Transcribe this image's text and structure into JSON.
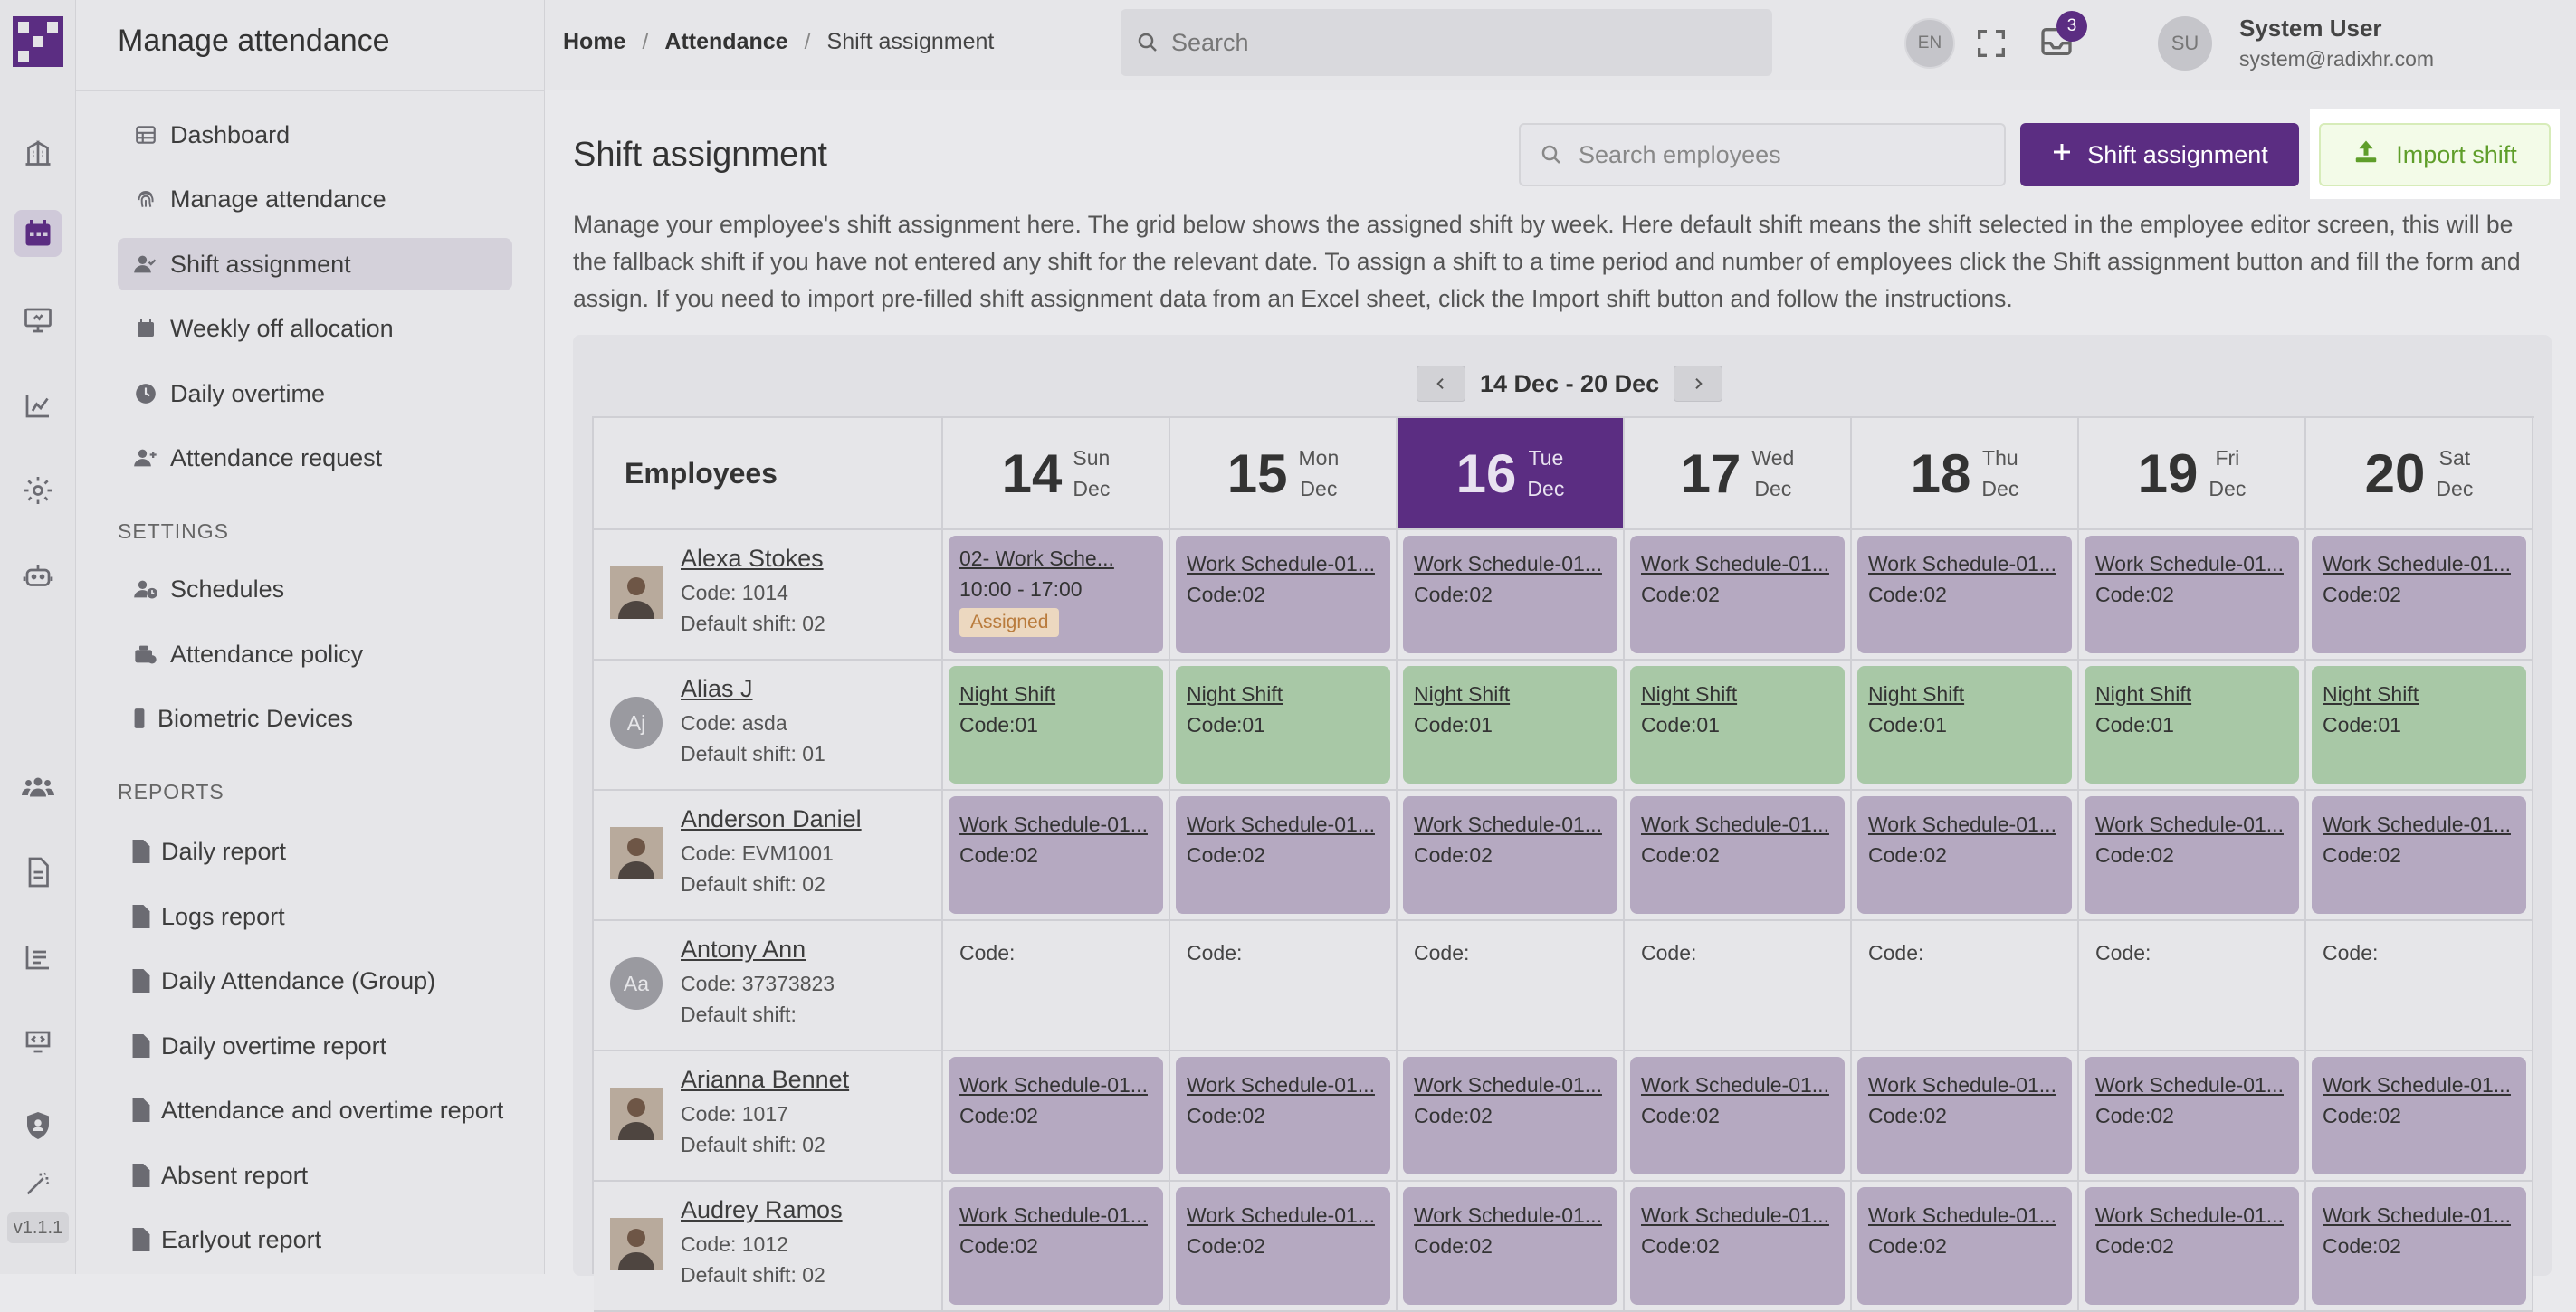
{
  "app": {
    "title": "Manage attendance",
    "version": "v1.1.1"
  },
  "rail_icons": [
    "building-icon",
    "calendar-icon",
    "monitor-icon",
    "chart-icon",
    "gear-icon",
    "robot-icon",
    "users-icon",
    "document-icon",
    "report-icon",
    "screen-icon",
    "shield-icon",
    "wand-icon"
  ],
  "sidebar": {
    "items": [
      {
        "label": "Dashboard",
        "icon": "table-icon"
      },
      {
        "label": "Manage attendance",
        "icon": "fingerprint-icon"
      },
      {
        "label": "Shift assignment",
        "icon": "user-check-icon"
      },
      {
        "label": "Weekly off allocation",
        "icon": "calendar-icon"
      },
      {
        "label": "Daily overtime",
        "icon": "clock-icon"
      },
      {
        "label": "Attendance request",
        "icon": "user-plus-icon"
      }
    ],
    "settings_label": "SETTINGS",
    "settings": [
      {
        "label": "Schedules",
        "icon": "user-clock-icon"
      },
      {
        "label": "Attendance policy",
        "icon": "policy-icon"
      },
      {
        "label": "Biometric Devices",
        "icon": "device-icon"
      }
    ],
    "reports_label": "REPORTS",
    "reports": [
      {
        "label": "Daily report"
      },
      {
        "label": "Logs report"
      },
      {
        "label": "Daily Attendance (Group)"
      },
      {
        "label": "Daily overtime report"
      },
      {
        "label": "Attendance and overtime report"
      },
      {
        "label": "Absent report"
      },
      {
        "label": "Earlyout report"
      }
    ]
  },
  "topbar": {
    "breadcrumb": [
      "Home",
      "Attendance",
      "Shift assignment"
    ],
    "search_placeholder": "Search",
    "lang": "EN",
    "notification_count": "3",
    "user_initials": "SU",
    "user_name": "System User",
    "user_email": "system@radixhr.com"
  },
  "page": {
    "title": "Shift assignment",
    "search_placeholder": "Search employees",
    "assign_button": "Shift assignment",
    "import_button": "Import shift",
    "description": "Manage your employee's shift assignment here. The grid below shows the assigned shift by week. Here default shift means the shift selected in the employee editor screen, this will be the fallback shift if you have not entered any shift for the relevant date. To assign a shift to a time period and number of employees click the Shift assignment button and fill the form and assign. If you need to import pre-filled shift assignment data from an Excel sheet, click the Import shift button and follow the instructions."
  },
  "grid": {
    "week_range": "14 Dec - 20 Dec",
    "employees_header": "Employees",
    "days": [
      {
        "num": "14",
        "dow": "Sun",
        "mon": "Dec",
        "today": false
      },
      {
        "num": "15",
        "dow": "Mon",
        "mon": "Dec",
        "today": false
      },
      {
        "num": "16",
        "dow": "Tue",
        "mon": "Dec",
        "today": true
      },
      {
        "num": "17",
        "dow": "Wed",
        "mon": "Dec",
        "today": false
      },
      {
        "num": "18",
        "dow": "Thu",
        "mon": "Dec",
        "today": false
      },
      {
        "num": "19",
        "dow": "Fri",
        "mon": "Dec",
        "today": false
      },
      {
        "num": "20",
        "dow": "Sat",
        "mon": "Dec",
        "today": false
      }
    ],
    "rows": [
      {
        "name": "Alexa Stokes",
        "code": "Code: 1014",
        "default": "Default shift: 02",
        "avatar": "photo",
        "initials": "",
        "cells": [
          {
            "type": "work",
            "name": "02- Work Sche...",
            "line2": "10:00 - 17:00",
            "tag": "Assigned"
          },
          {
            "type": "work",
            "name": "Work Schedule-01...",
            "line2": "Code:02"
          },
          {
            "type": "work",
            "name": "Work Schedule-01...",
            "line2": "Code:02"
          },
          {
            "type": "work",
            "name": "Work Schedule-01...",
            "line2": "Code:02"
          },
          {
            "type": "work",
            "name": "Work Schedule-01...",
            "line2": "Code:02"
          },
          {
            "type": "work",
            "name": "Work Schedule-01...",
            "line2": "Code:02"
          },
          {
            "type": "work",
            "name": "Work Schedule-01...",
            "line2": "Code:02"
          }
        ]
      },
      {
        "name": "Alias J",
        "code": "Code: asda",
        "default": "Default shift: 01",
        "avatar": "initials",
        "initials": "Aj",
        "cells": [
          {
            "type": "night",
            "name": "Night Shift",
            "line2": "Code:01"
          },
          {
            "type": "night",
            "name": "Night Shift",
            "line2": "Code:01"
          },
          {
            "type": "night",
            "name": "Night Shift",
            "line2": "Code:01"
          },
          {
            "type": "night",
            "name": "Night Shift",
            "line2": "Code:01"
          },
          {
            "type": "night",
            "name": "Night Shift",
            "line2": "Code:01"
          },
          {
            "type": "night",
            "name": "Night Shift",
            "line2": "Code:01"
          },
          {
            "type": "night",
            "name": "Night Shift",
            "line2": "Code:01"
          }
        ]
      },
      {
        "name": "Anderson Daniel",
        "code": "Code: EVM1001",
        "default": "Default shift: 02",
        "avatar": "photo",
        "initials": "",
        "cells": [
          {
            "type": "work",
            "name": "Work Schedule-01...",
            "line2": "Code:02"
          },
          {
            "type": "work",
            "name": "Work Schedule-01...",
            "line2": "Code:02"
          },
          {
            "type": "work",
            "name": "Work Schedule-01...",
            "line2": "Code:02"
          },
          {
            "type": "work",
            "name": "Work Schedule-01...",
            "line2": "Code:02"
          },
          {
            "type": "work",
            "name": "Work Schedule-01...",
            "line2": "Code:02"
          },
          {
            "type": "work",
            "name": "Work Schedule-01...",
            "line2": "Code:02"
          },
          {
            "type": "work",
            "name": "Work Schedule-01...",
            "line2": "Code:02"
          }
        ]
      },
      {
        "name": "Antony Ann",
        "code": "Code: 37373823",
        "default": "Default shift:",
        "avatar": "initials",
        "initials": "Aa",
        "cells": [
          {
            "type": "empty",
            "line2": "Code:"
          },
          {
            "type": "empty",
            "line2": "Code:"
          },
          {
            "type": "empty",
            "line2": "Code:"
          },
          {
            "type": "empty",
            "line2": "Code:"
          },
          {
            "type": "empty",
            "line2": "Code:"
          },
          {
            "type": "empty",
            "line2": "Code:"
          },
          {
            "type": "empty",
            "line2": "Code:"
          }
        ]
      },
      {
        "name": "Arianna Bennet",
        "code": "Code: 1017",
        "default": "Default shift: 02",
        "avatar": "photo",
        "initials": "",
        "cells": [
          {
            "type": "work",
            "name": "Work Schedule-01...",
            "line2": "Code:02"
          },
          {
            "type": "work",
            "name": "Work Schedule-01...",
            "line2": "Code:02"
          },
          {
            "type": "work",
            "name": "Work Schedule-01...",
            "line2": "Code:02"
          },
          {
            "type": "work",
            "name": "Work Schedule-01...",
            "line2": "Code:02"
          },
          {
            "type": "work",
            "name": "Work Schedule-01...",
            "line2": "Code:02"
          },
          {
            "type": "work",
            "name": "Work Schedule-01...",
            "line2": "Code:02"
          },
          {
            "type": "work",
            "name": "Work Schedule-01...",
            "line2": "Code:02"
          }
        ]
      },
      {
        "name": "Audrey Ramos",
        "code": "Code: 1012",
        "default": "Default shift: 02",
        "avatar": "photo",
        "initials": "",
        "cells": [
          {
            "type": "work",
            "name": "Work Schedule-01...",
            "line2": "Code:02"
          },
          {
            "type": "work",
            "name": "Work Schedule-01...",
            "line2": "Code:02"
          },
          {
            "type": "work",
            "name": "Work Schedule-01...",
            "line2": "Code:02"
          },
          {
            "type": "work",
            "name": "Work Schedule-01...",
            "line2": "Code:02"
          },
          {
            "type": "work",
            "name": "Work Schedule-01...",
            "line2": "Code:02"
          },
          {
            "type": "work",
            "name": "Work Schedule-01...",
            "line2": "Code:02"
          },
          {
            "type": "work",
            "name": "Work Schedule-01...",
            "line2": "Code:02"
          }
        ]
      }
    ]
  },
  "colors": {
    "brand": "#5b2d82",
    "work": "#b5a9c1",
    "night": "#a8c8a6",
    "import": "#5f9e2a"
  }
}
